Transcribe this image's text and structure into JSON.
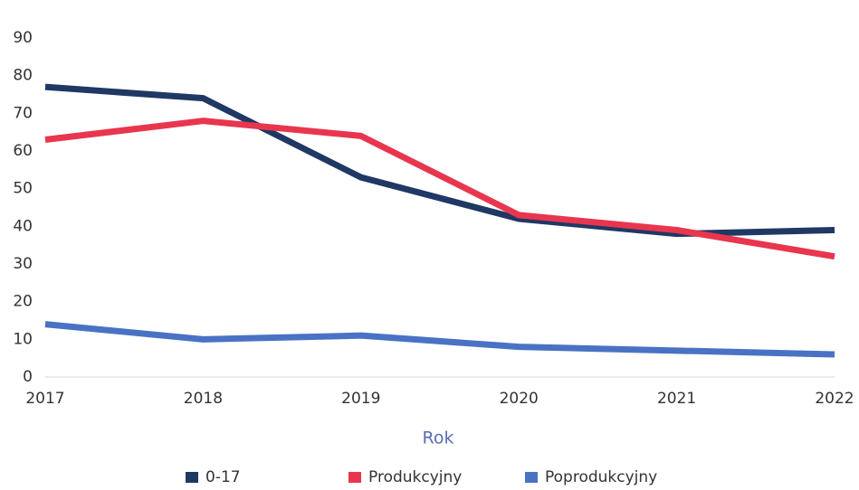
{
  "chart_data": {
    "type": "line",
    "x_label": "Rok",
    "categories": [
      "2017",
      "2018",
      "2019",
      "2020",
      "2021",
      "2022"
    ],
    "series": [
      {
        "name": "0-17",
        "color": "#1f3864",
        "values": [
          77,
          74,
          53,
          42,
          38,
          39
        ]
      },
      {
        "name": "Produkcyjny",
        "color": "#e8364f",
        "values": [
          63,
          68,
          64,
          43,
          39,
          32
        ]
      },
      {
        "name": "Poprodukcyjny",
        "color": "#4a72c4",
        "values": [
          14,
          10,
          11,
          8,
          7,
          6
        ]
      }
    ],
    "ylim": [
      0,
      90
    ],
    "yticks": [
      0,
      10,
      20,
      30,
      40,
      50,
      60,
      70,
      80,
      90
    ],
    "grid": false,
    "legend": "bottom"
  }
}
